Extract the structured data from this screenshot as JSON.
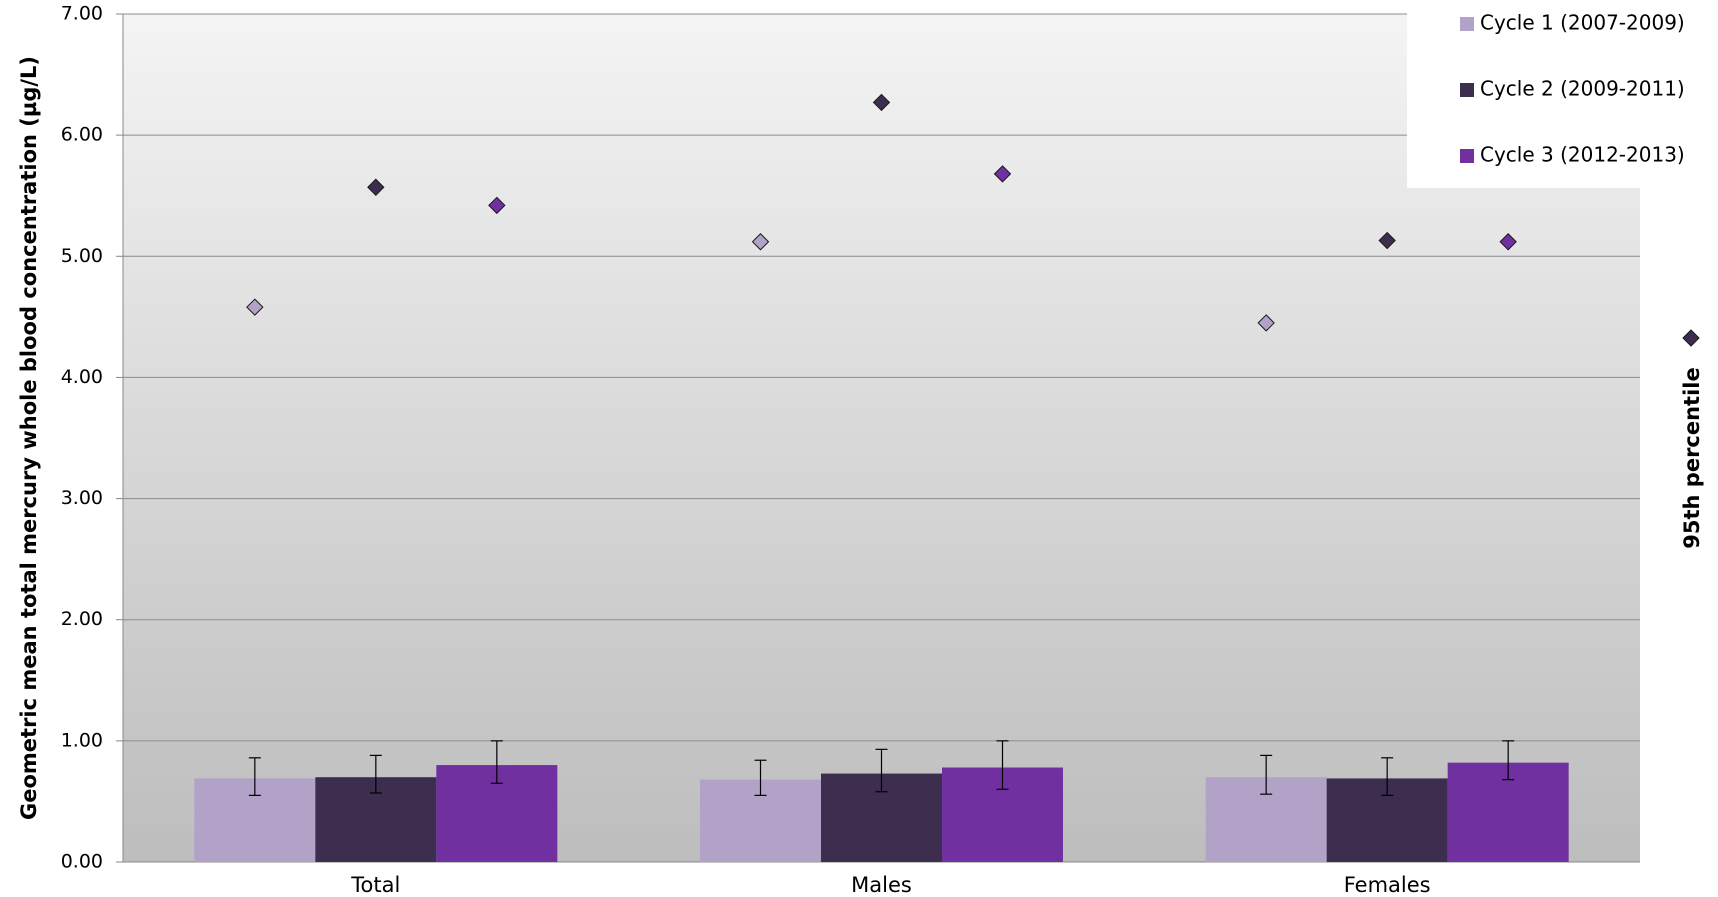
{
  "chart_data": {
    "type": "bar",
    "ylabel": "Geometric mean total mercury whole blood concentration (µg/L)",
    "ylim": [
      0,
      7
    ],
    "yticks": [
      "0.00",
      "1.00",
      "2.00",
      "3.00",
      "4.00",
      "5.00",
      "6.00",
      "7.00"
    ],
    "categories": [
      "Total",
      "Males",
      "Females"
    ],
    "legend_position": "top-right",
    "grid": true,
    "series": [
      {
        "name": "Cycle 1 (2007-2009)",
        "color": "#b3a2c8",
        "values": [
          0.69,
          0.68,
          0.7
        ],
        "ci_low": [
          0.55,
          0.55,
          0.56
        ],
        "ci_high": [
          0.86,
          0.84,
          0.88
        ],
        "p95": [
          4.58,
          5.12,
          4.45
        ]
      },
      {
        "name": "Cycle 2 (2009-2011)",
        "color": "#3d2d4f",
        "values": [
          0.7,
          0.73,
          0.69
        ],
        "ci_low": [
          0.57,
          0.58,
          0.55
        ],
        "ci_high": [
          0.88,
          0.93,
          0.86
        ],
        "p95": [
          5.57,
          6.27,
          5.13
        ]
      },
      {
        "name": "Cycle 3 (2012-2013)",
        "color": "#7030a0",
        "values": [
          0.8,
          0.78,
          0.82
        ],
        "ci_low": [
          0.65,
          0.6,
          0.68
        ],
        "ci_high": [
          1.0,
          1.0,
          1.0
        ],
        "p95": [
          5.42,
          5.68,
          5.12
        ]
      }
    ],
    "marker_legend_label": "95th percentile",
    "marker_legend_color": "#3d2d4f"
  }
}
